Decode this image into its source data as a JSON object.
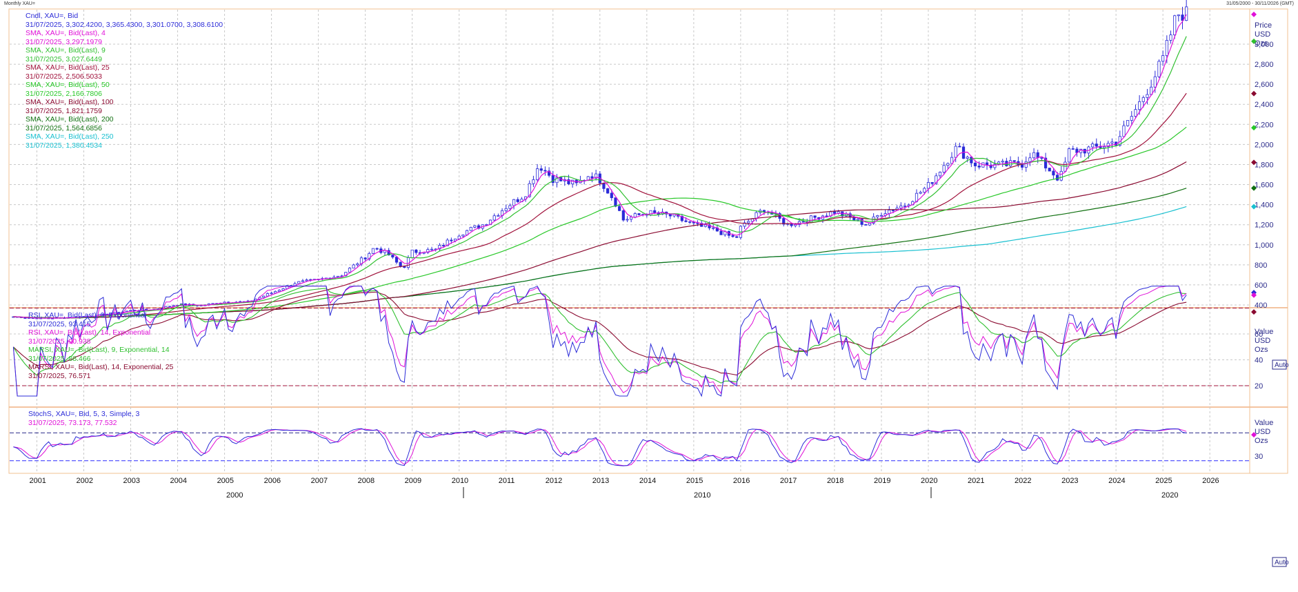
{
  "window": {
    "title": "Monthly XAU=",
    "range": "31/05/2000 - 30/11/2026 (GMT)"
  },
  "price_panel": {
    "legend": [
      {
        "label": "Cndl, XAU=, Bid",
        "value": "31/07/2025, 3,302.4200, 3,365.4300, 3,301.0700, 3,308.6100",
        "color": "#2b2bd8"
      },
      {
        "label": "SMA, XAU=, Bid(Last),  4",
        "value": "31/07/2025, 3,297.1979",
        "color": "#e010d8"
      },
      {
        "label": "SMA, XAU=, Bid(Last),  9",
        "value": "31/07/2025, 3,027.6449",
        "color": "#30c030"
      },
      {
        "label": "SMA, XAU=, Bid(Last),  25",
        "value": "31/07/2025, 2,506.5033",
        "color": "#a0103a"
      },
      {
        "label": "SMA, XAU=, Bid(Last),  50",
        "value": "31/07/2025, 2,166.7806",
        "color": "#28c828"
      },
      {
        "label": "SMA, XAU=, Bid(Last),  100",
        "value": "31/07/2025, 1,821.1759",
        "color": "#8a0a30"
      },
      {
        "label": "SMA, XAU=, Bid(Last),  200",
        "value": "31/07/2025, 1,564.6856",
        "color": "#107010"
      },
      {
        "label": "SMA, XAU=, Bid(Last),  250",
        "value": "31/07/2025, 1,380.4534",
        "color": "#18c0d0"
      }
    ],
    "axis_header": [
      "Price",
      "USD",
      "Ozs"
    ],
    "ticks": [
      "400",
      "600",
      "800",
      "1,000",
      "1,200",
      "1,400",
      "1,600",
      "1,800",
      "2,000",
      "2,200",
      "2,400",
      "2,600",
      "2,800",
      "3,000"
    ],
    "auto_label": "Auto"
  },
  "rsi_panel": {
    "legend": [
      {
        "label": "RSI, XAU=, Bid(Last),  9, Exponential",
        "value": "31/07/2025, 93.415",
        "color": "#2b2bd8"
      },
      {
        "label": "RSI, XAU=, Bid(Last),  14, Exponential",
        "value": "31/07/2025, 90.938",
        "color": "#e010d8"
      },
      {
        "label": "MARSI, XAU=, Bid(Last),  9, Exponential, 14",
        "value": "31/07/2025, 88.466",
        "color": "#30c030"
      },
      {
        "label": "MARSI, XAU=, Bid(Last),  14, Exponential, 25",
        "value": "31/07/2025, 76.571",
        "color": "#8a0a30"
      }
    ],
    "axis_header": [
      "Value",
      "USD",
      "Ozs"
    ],
    "ticks": [
      "20",
      "40",
      "60"
    ]
  },
  "stoch_panel": {
    "legend": [
      {
        "label": "StochS, XAU=, Bid,  5, 3, Simple, 3",
        "value": "31/07/2025, 73.173, 77.532",
        "color": "#2b2bd8"
      }
    ],
    "value_color": "#e010d8",
    "axis_header": [
      "Value",
      "USD",
      "Ozs"
    ],
    "ticks": [
      "30"
    ],
    "auto_label": "Auto"
  },
  "xaxis": {
    "years": [
      "2001",
      "2002",
      "2003",
      "2004",
      "2005",
      "2006",
      "2007",
      "2008",
      "2009",
      "2010",
      "2011",
      "2012",
      "2013",
      "2014",
      "2015",
      "2016",
      "2017",
      "2018",
      "2019",
      "2020",
      "2021",
      "2022",
      "2023",
      "2024",
      "2025",
      "2026"
    ],
    "decades": [
      "2000",
      "2010",
      "2020"
    ]
  },
  "chart_data": {
    "type": "line",
    "title": "Monthly XAU=",
    "x": [
      2000.5,
      2001,
      2001.5,
      2002,
      2002.5,
      2003,
      2003.5,
      2004,
      2004.5,
      2005,
      2005.5,
      2006,
      2006.5,
      2007,
      2007.5,
      2008,
      2008.2,
      2008.5,
      2008.8,
      2009,
      2009.5,
      2010,
      2010.5,
      2011,
      2011.4,
      2011.7,
      2012,
      2012.5,
      2012.8,
      2013,
      2013.3,
      2013.5,
      2014,
      2014.5,
      2015,
      2015.5,
      2015.9,
      2016,
      2016.5,
      2017,
      2017.5,
      2018,
      2018.7,
      2019,
      2019.5,
      2020,
      2020.6,
      2021,
      2021.5,
      2022,
      2022.2,
      2022.8,
      2023,
      2023.5,
      2024,
      2024.3,
      2024.8,
      2025,
      2025.3,
      2025.5
    ],
    "close": [
      283,
      268,
      270,
      285,
      305,
      345,
      355,
      405,
      395,
      430,
      430,
      520,
      620,
      650,
      700,
      880,
      975,
      900,
      760,
      930,
      950,
      1110,
      1200,
      1380,
      1500,
      1800,
      1660,
      1600,
      1710,
      1650,
      1450,
      1250,
      1320,
      1290,
      1200,
      1140,
      1060,
      1170,
      1360,
      1200,
      1260,
      1330,
      1200,
      1320,
      1400,
      1590,
      1970,
      1800,
      1790,
      1810,
      1920,
      1650,
      1930,
      1960,
      2030,
      2250,
      2660,
      2850,
      3300,
      3308
    ],
    "ylim": [
      300,
      3450
    ],
    "series_names": [
      "Cndl",
      "SMA 4",
      "SMA 9",
      "SMA 25",
      "SMA 50",
      "SMA 100",
      "SMA 200",
      "SMA 250",
      "RSI 9",
      "RSI 14",
      "MARSI 9",
      "MARSI 14",
      "StochS %K",
      "StochS %D"
    ]
  }
}
